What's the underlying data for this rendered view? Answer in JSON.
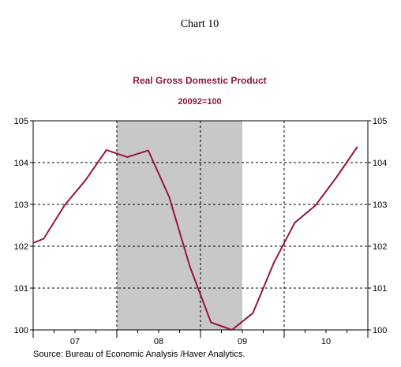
{
  "page": {
    "chart_label": "Chart 10",
    "source": "Source:  Bureau of Economic Analysis /Haver Analytics."
  },
  "colors": {
    "series_line": "#99143c",
    "title_text": "#8b1a3a",
    "recession_shade": "#c8c8c8",
    "axis": "#000000",
    "grid": "#000000"
  },
  "chart_data": {
    "type": "line",
    "title": "Real Gross Domestic Product",
    "subtitle": "20092=100",
    "xlabel": "",
    "ylabel": "",
    "ylim": [
      100,
      105
    ],
    "yticks": [
      100,
      101,
      102,
      103,
      104,
      105
    ],
    "ytick_labels": [
      "100",
      "101",
      "102",
      "103",
      "104",
      "105"
    ],
    "xlim": [
      2007.0,
      2011.0
    ],
    "xticks": [
      2007.0,
      2008.0,
      2009.0,
      2010.0,
      2011.0
    ],
    "xtick_labels": [
      "07",
      "08",
      "09",
      "10"
    ],
    "x_label_positions": [
      2007.5,
      2008.5,
      2009.5,
      2010.5
    ],
    "grid": true,
    "grid_style": "dashed",
    "recession_band": {
      "start": 2008.0,
      "end": 2009.5
    },
    "series": [
      {
        "x": [
          2007.0,
          2007.125,
          2007.375,
          2007.625,
          2007.875,
          2008.125,
          2008.375,
          2008.625,
          2008.875,
          2009.125,
          2009.375,
          2009.625,
          2009.875,
          2010.125,
          2010.375,
          2010.625,
          2010.875
        ],
        "values": [
          102.08,
          102.18,
          102.98,
          103.58,
          104.3,
          104.13,
          104.29,
          103.18,
          101.5,
          100.18,
          100.0,
          100.4,
          101.6,
          102.56,
          102.98,
          103.65,
          104.38
        ]
      }
    ]
  }
}
